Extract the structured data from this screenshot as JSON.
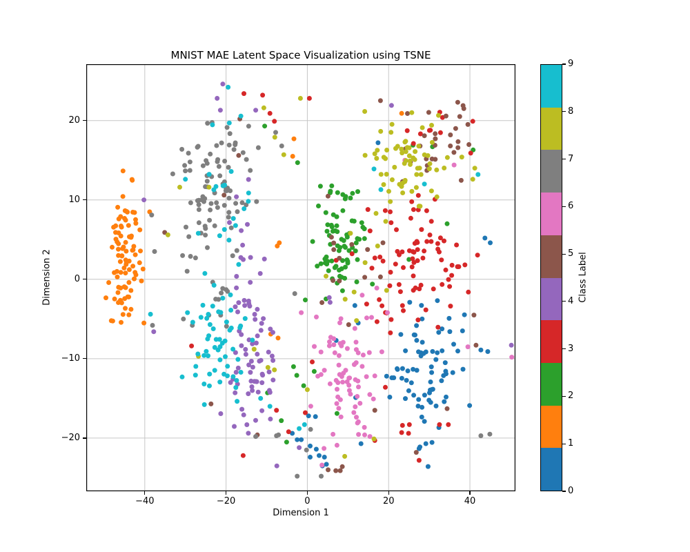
{
  "chart_data": {
    "type": "scatter",
    "title": "MNIST MAE Latent Space Visualization using TSNE",
    "xlabel": "Dimension 1",
    "ylabel": "Dimension 2",
    "xlim": [
      -54.4,
      51.2
    ],
    "ylim": [
      -26.7,
      27.1
    ],
    "xticks": [
      -40,
      -20,
      0,
      20,
      40
    ],
    "yticks": [
      -20,
      -10,
      0,
      10,
      20
    ],
    "grid": true,
    "grid_color": "#c6c6c6",
    "spine_color": "#000000",
    "text_color": "#000000",
    "background_color": "#ffffff",
    "marker_diameter_px": 7,
    "colorbar": {
      "label": "Class Label",
      "ticks": [
        0,
        1,
        2,
        3,
        4,
        5,
        6,
        7,
        8,
        9
      ]
    },
    "classes": [
      {
        "label": 0,
        "color": "#1f77b4",
        "clusters": [
          {
            "cx": 29.5,
            "cy": -10.5,
            "sx": 5.0,
            "sy": 3.8,
            "n": 68
          },
          {
            "cx": 28.0,
            "cy": -20.5,
            "sx": 1.6,
            "sy": 1.4,
            "n": 6
          }
        ],
        "points": [
          [
            -3.7,
            -19.4
          ],
          [
            -1.5,
            -20.2
          ],
          [
            -2.5,
            -20.2
          ],
          [
            0.7,
            -21.0
          ],
          [
            2.2,
            -21.4
          ],
          [
            2.9,
            -22.2
          ],
          [
            0.7,
            -22.4
          ],
          [
            4.2,
            -22.4
          ],
          [
            4.7,
            -23.3
          ],
          [
            3.7,
            -23.5
          ],
          [
            0.3,
            -17.2
          ],
          [
            2.0,
            -17.3
          ],
          [
            13.2,
            -20.7
          ],
          [
            43.7,
            5.2
          ],
          [
            45.0,
            4.6
          ],
          [
            11.7,
            -3.3
          ],
          [
            11.9,
            -14.9
          ],
          [
            19.5,
            -12.2
          ],
          [
            20.8,
            -12.4
          ],
          [
            7.1,
            -7.7
          ],
          [
            17.4,
            17.2
          ],
          [
            42.7,
            -8.9
          ],
          [
            44.4,
            -9.1
          ],
          [
            12.5,
            -5.5
          ]
        ]
      },
      {
        "label": 1,
        "color": "#ff7f0e",
        "clusters": [
          {
            "cx": -44.8,
            "cy": 3.0,
            "sx": 2.3,
            "sy": 4.9,
            "n": 88
          }
        ],
        "points": [
          [
            -7.4,
            4.2
          ],
          [
            -6.9,
            4.6
          ],
          [
            23.2,
            20.9
          ],
          [
            -3.6,
            15.5
          ],
          [
            -3.3,
            17.7
          ],
          [
            -9.0,
            -6.9
          ],
          [
            -7.2,
            -7.4
          ],
          [
            -38.8,
            8.5
          ]
        ]
      },
      {
        "label": 2,
        "color": "#2ca02c",
        "clusters": [
          {
            "cx": 8.0,
            "cy": 5.0,
            "sx": 3.1,
            "sy": 3.4,
            "n": 76
          }
        ],
        "points": [
          [
            -3.4,
            -11.0
          ],
          [
            -2.6,
            -12.1
          ],
          [
            -0.9,
            -13.4
          ],
          [
            -5.1,
            -20.5
          ],
          [
            -6.4,
            -17.8
          ],
          [
            -9.8,
            -14.3
          ],
          [
            1.7,
            -11.6
          ],
          [
            7.3,
            -16.9
          ],
          [
            -2.4,
            14.7
          ],
          [
            -10.5,
            19.3
          ],
          [
            26.0,
            16.9
          ],
          [
            30.8,
            16.7
          ],
          [
            40.8,
            16.3
          ],
          [
            34.4,
            7.0
          ],
          [
            25.0,
            2.5
          ],
          [
            16.0,
            -0.6
          ],
          [
            -0.5,
            -2.6
          ]
        ]
      },
      {
        "label": 3,
        "color": "#d62728",
        "clusters": [
          {
            "cx": 27.0,
            "cy": 2.0,
            "sx": 7.5,
            "sy": 4.3,
            "n": 82
          },
          {
            "cx": 28.5,
            "cy": 18.7,
            "sx": 4.5,
            "sy": 1.4,
            "n": 8
          }
        ],
        "points": [
          [
            -15.6,
            23.4
          ],
          [
            -11.0,
            23.2
          ],
          [
            -9.2,
            20.9
          ],
          [
            -8.1,
            19.9
          ],
          [
            0.5,
            22.8
          ],
          [
            -28.5,
            -8.4
          ],
          [
            -15.8,
            -22.2
          ],
          [
            -0.5,
            -16.8
          ],
          [
            -7.6,
            -16.5
          ],
          [
            -4.6,
            -19.2
          ],
          [
            1.2,
            -10.4
          ],
          [
            19.2,
            -13.6
          ],
          [
            23.4,
            -18.4
          ],
          [
            25.1,
            -18.3
          ],
          [
            23.2,
            -19.3
          ],
          [
            24.9,
            -19.4
          ],
          [
            27.5,
            -22.8
          ],
          [
            32.5,
            -18.3
          ],
          [
            34.7,
            -18.3
          ],
          [
            14.9,
            8.8
          ],
          [
            7.1,
            2.4
          ],
          [
            40.7,
            19.9
          ],
          [
            40.2,
            15.9
          ],
          [
            16.6,
            -20.3
          ]
        ]
      },
      {
        "label": 4,
        "color": "#9467bd",
        "clusters": [
          {
            "cx": -14.5,
            "cy": -10.0,
            "sx": 3.2,
            "sy": 6.0,
            "n": 72
          },
          {
            "cx": -19.0,
            "cy": 9.0,
            "sx": 3.0,
            "sy": 4.0,
            "n": 8
          }
        ],
        "points": [
          [
            -20.8,
            24.6
          ],
          [
            -22.2,
            22.8
          ],
          [
            -21.4,
            21.3
          ],
          [
            -12.7,
            21.3
          ],
          [
            20.7,
            21.9
          ],
          [
            5.4,
            -2.3
          ],
          [
            5.6,
            -2.9
          ],
          [
            -2.0,
            -21.2
          ],
          [
            -7.5,
            -23.5
          ],
          [
            -40.2,
            10.0
          ],
          [
            -37.8,
            -6.6
          ],
          [
            50.2,
            -8.3
          ]
        ]
      },
      {
        "label": 5,
        "color": "#8c564b",
        "clusters": [
          {
            "cx": 31.5,
            "cy": 17.0,
            "sx": 6.0,
            "sy": 2.8,
            "n": 24
          },
          {
            "cx": 9.0,
            "cy": 3.0,
            "sx": 3.0,
            "sy": 4.0,
            "n": 12
          }
        ],
        "points": [
          [
            37.0,
            22.3
          ],
          [
            38.5,
            21.5
          ],
          [
            37.5,
            20.5
          ],
          [
            39.5,
            19.5
          ],
          [
            36.5,
            19.0
          ],
          [
            18.0,
            22.5
          ],
          [
            -16.9,
            15.6
          ],
          [
            -16.6,
            20.2
          ],
          [
            -20.5,
            10.6
          ],
          [
            -35.1,
            5.9
          ],
          [
            -23.7,
            -15.7
          ],
          [
            16.6,
            -16.5
          ],
          [
            26.8,
            -21.8
          ],
          [
            34.4,
            -16.3
          ],
          [
            41.5,
            -8.3
          ],
          [
            41.0,
            -4.5
          ],
          [
            5.1,
            -24.0
          ],
          [
            7.0,
            -24.1
          ],
          [
            8.1,
            -24.1
          ],
          [
            8.6,
            -23.6
          ],
          [
            18.6,
            4.6
          ],
          [
            18.0,
            0.3
          ],
          [
            -12.3,
            -19.6
          ]
        ]
      },
      {
        "label": 6,
        "color": "#e377c2",
        "clusters": [
          {
            "cx": 9.5,
            "cy": -12.5,
            "sx": 4.3,
            "sy": 3.8,
            "n": 70
          }
        ],
        "points": [
          [
            24.0,
            15.0
          ],
          [
            36.1,
            14.4
          ],
          [
            -1.5,
            -4.2
          ],
          [
            17.1,
            -1.1
          ],
          [
            19.7,
            -4.2
          ],
          [
            39.5,
            -8.5
          ],
          [
            50.8,
            -9.8
          ],
          [
            3.6,
            -23.4
          ],
          [
            13.5,
            -2.0
          ],
          [
            15.8,
            -4.8
          ],
          [
            14.1,
            -19.6
          ],
          [
            15.4,
            -19.8
          ],
          [
            7.3,
            -20.9
          ],
          [
            4.1,
            -21.3
          ]
        ]
      },
      {
        "label": 7,
        "color": "#7f7f7f",
        "clusters": [
          {
            "cx": -23.0,
            "cy": 12.0,
            "sx": 5.0,
            "sy": 5.0,
            "n": 86
          },
          {
            "cx": -23.0,
            "cy": -1.5,
            "sx": 2.5,
            "sy": 3.0,
            "n": 10
          }
        ],
        "points": [
          [
            -12.7,
            -19.8
          ],
          [
            -7.1,
            -19.6
          ],
          [
            -7.6,
            -19.7
          ],
          [
            -2.5,
            -24.8
          ],
          [
            3.4,
            -24.8
          ],
          [
            -3.1,
            -1.8
          ],
          [
            42.7,
            -19.7
          ],
          [
            44.9,
            -19.5
          ],
          [
            -7.8,
            18.5
          ],
          [
            -30.5,
            -5.0
          ],
          [
            -28.3,
            -5.8
          ],
          [
            0.8,
            -18.9
          ],
          [
            -0.2,
            -21.5
          ],
          [
            -6.3,
            16.8
          ],
          [
            -38.3,
            8.1
          ],
          [
            -37.6,
            3.5
          ],
          [
            -38.1,
            -5.8
          ]
        ]
      },
      {
        "label": 8,
        "color": "#bcbd22",
        "clusters": [
          {
            "cx": 24.0,
            "cy": 14.0,
            "sx": 5.5,
            "sy": 3.3,
            "n": 64
          }
        ],
        "points": [
          [
            -10.7,
            21.6
          ],
          [
            -8.0,
            17.9
          ],
          [
            -5.8,
            15.7
          ],
          [
            -31.4,
            11.6
          ],
          [
            -24.2,
            11.6
          ],
          [
            -34.3,
            5.6
          ],
          [
            -26.8,
            -9.7
          ],
          [
            -13.1,
            -8.8
          ],
          [
            -9.7,
            -11.1
          ],
          [
            -8.1,
            -11.4
          ],
          [
            0.0,
            -13.9
          ],
          [
            9.2,
            -22.3
          ],
          [
            16.4,
            -20.1
          ],
          [
            11.5,
            -1.6
          ],
          [
            9.3,
            -2.5
          ],
          [
            4.6,
            0.4
          ],
          [
            16.9,
            8.3
          ],
          [
            17.3,
            4.2
          ],
          [
            40.7,
            12.6
          ],
          [
            41.2,
            14.0
          ],
          [
            38.0,
            15.4
          ],
          [
            12.1,
            -5.2
          ],
          [
            10.6,
            5.8
          ],
          [
            14.2,
            2.1
          ],
          [
            19.5,
            -1.4
          ],
          [
            -1.7,
            22.8
          ],
          [
            25.7,
            21.0
          ]
        ]
      },
      {
        "label": 9,
        "color": "#17becf",
        "clusters": [
          {
            "cx": -21.0,
            "cy": -7.5,
            "sx": 4.2,
            "sy": 5.0,
            "n": 56
          },
          {
            "cx": -21.0,
            "cy": 11.0,
            "sx": 4.0,
            "sy": 4.5,
            "n": 18
          }
        ],
        "points": [
          [
            -19.5,
            24.2
          ],
          [
            16.4,
            13.9
          ],
          [
            28.8,
            12.0
          ],
          [
            42.0,
            13.2
          ],
          [
            -2.0,
            -18.8
          ],
          [
            -0.7,
            -18.3
          ],
          [
            18.1,
            11.3
          ],
          [
            -30.8,
            -12.3
          ],
          [
            -29.5,
            -4.2
          ],
          [
            -9.2,
            -16.0
          ],
          [
            -11.5,
            -15.0
          ],
          [
            -38.6,
            -4.4
          ],
          [
            -30.0,
            12.6
          ]
        ]
      }
    ]
  }
}
